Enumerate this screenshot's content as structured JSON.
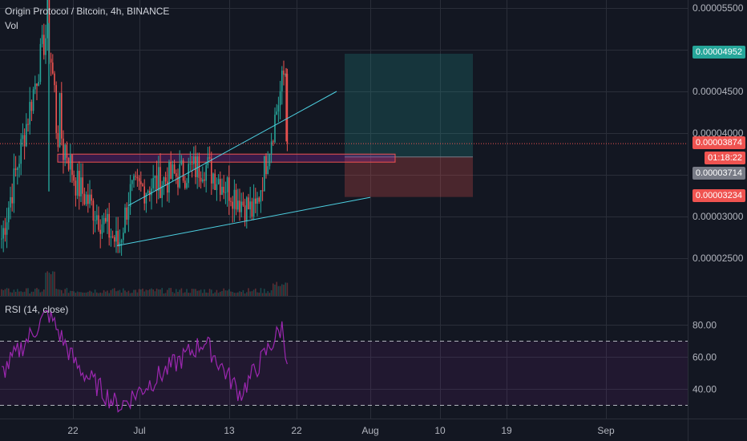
{
  "header": {
    "symbol_title": "Origin Protocol / Bitcoin, 4h, BINANCE",
    "volume_label": "Vol",
    "rsi_label": "RSI (14, close)"
  },
  "price_tags": {
    "target": "0.00004952",
    "current": "0.00003874",
    "countdown": "01:18:22",
    "entry": "0.00003714",
    "stop": "0.00003234"
  },
  "colors": {
    "background": "#131722",
    "grid": "#2a2e39",
    "up": "#26a69a",
    "down": "#ef5350",
    "rsi_line": "#9c27b0",
    "trendline": "#4dd0e1",
    "profit_zone": "#26a69a",
    "loss_zone": "#ef5350",
    "entry_tag": "#787b86",
    "target_tag": "#26a69a",
    "stop_tag": "#ef5350"
  },
  "chart_data": [
    {
      "type": "candlestick",
      "title": "Origin Protocol / Bitcoin, 4h, BINANCE",
      "x_ticks": [
        "22",
        "Jul",
        "13",
        "22",
        "Aug",
        "10",
        "19",
        "Sep"
      ],
      "y_ticks": [
        "0.00005500",
        "0.00004500",
        "0.00004000",
        "0.00003000",
        "0.00002500"
      ],
      "ylim": [
        2.05e-05,
        5.55e-05
      ],
      "grid": true,
      "key_points": [
        {
          "label": "start",
          "price": 2.65e-05
        },
        {
          "label": "spike high",
          "price": 5.32e-05
        },
        {
          "label": "post-spike",
          "price": 4.2e-05
        },
        {
          "label": "range",
          "price": 3.4e-05
        },
        {
          "label": "low",
          "price": 2.65e-05
        },
        {
          "label": "Jul rally",
          "price": 3.28e-05
        },
        {
          "label": "mid Jul high",
          "price": 3.62e-05
        },
        {
          "label": "pullback low",
          "price": 3.03e-05
        },
        {
          "label": "breakout high",
          "price": 4.78e-05
        },
        {
          "label": "last",
          "price": 3.874e-05
        }
      ],
      "position": {
        "entry": 3.714e-05,
        "target": 4.952e-05,
        "stop": 3.234e-05
      },
      "volume_label": "Vol"
    },
    {
      "type": "line",
      "title": "RSI (14, close)",
      "y_ticks": [
        "80.00",
        "60.00",
        "40.00"
      ],
      "ylim": [
        23,
        90
      ],
      "bands": [
        30,
        70
      ],
      "key_points": [
        {
          "label": "start",
          "value": 50
        },
        {
          "label": "spike peak",
          "value": 88
        },
        {
          "label": "decline",
          "value": 55
        },
        {
          "label": "low",
          "value": 29
        },
        {
          "label": "mid Jul peak",
          "value": 70
        },
        {
          "label": "trough",
          "value": 37
        },
        {
          "label": "late peak",
          "value": 79
        },
        {
          "label": "last",
          "value": 51
        }
      ]
    }
  ]
}
